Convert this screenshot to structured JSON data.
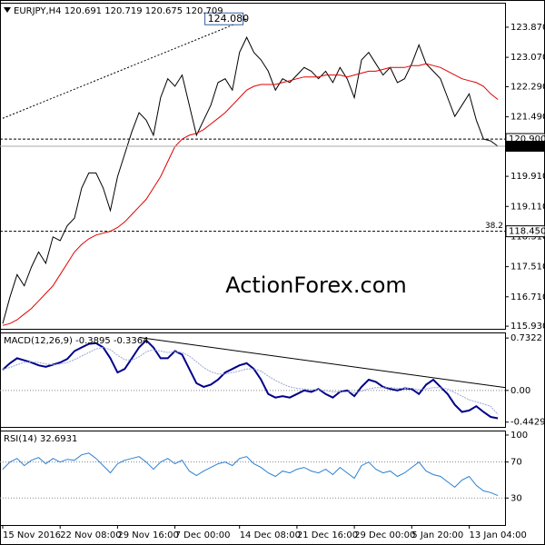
{
  "chart_data": [
    {
      "type": "line",
      "title": "EURJPY,H4 120.691 120.719 120.675 120.709",
      "watermark": "ActionForex.com",
      "xlim": [
        -0.38,
        70
      ],
      "ylim": [
        115.86,
        124.52
      ],
      "yticks": [
        {
          "value": 123.87,
          "label": "123.870"
        },
        {
          "value": 123.07,
          "label": "123.070"
        },
        {
          "value": 122.29,
          "label": "122.290"
        },
        {
          "value": 121.49,
          "label": "121.490"
        },
        {
          "value": 119.91,
          "label": "119.910"
        },
        {
          "value": 119.11,
          "label": "119.110"
        },
        {
          "value": 118.31,
          "label": "118.310"
        },
        {
          "value": 117.51,
          "label": "117.510"
        },
        {
          "value": 116.71,
          "label": "116.710"
        },
        {
          "value": 115.93,
          "label": "115.930"
        }
      ],
      "series": [
        {
          "name": "EURJPY",
          "color": "#000000",
          "values": [
            116.0,
            116.7,
            117.3,
            117.0,
            117.5,
            117.9,
            117.6,
            118.3,
            118.2,
            118.6,
            118.8,
            119.6,
            120.0,
            120.0,
            119.6,
            119.0,
            119.9,
            120.5,
            121.1,
            121.6,
            121.4,
            121.0,
            122.0,
            122.5,
            122.3,
            122.6,
            121.8,
            121.0,
            121.4,
            121.8,
            122.4,
            122.5,
            122.2,
            123.2,
            123.6,
            123.2,
            123.0,
            122.7,
            122.2,
            122.5,
            122.4,
            122.6,
            122.8,
            122.7,
            122.5,
            122.7,
            122.4,
            122.8,
            122.5,
            122.0,
            123.0,
            123.2,
            122.9,
            122.6,
            122.8,
            122.4,
            122.5,
            122.9,
            123.4,
            122.9,
            122.7,
            122.5,
            122.0,
            121.5,
            121.8,
            122.1,
            121.4,
            120.9,
            120.85,
            120.709
          ]
        },
        {
          "name": "MA",
          "color": "#e00000",
          "values": [
            115.95,
            116.0,
            116.1,
            116.25,
            116.4,
            116.6,
            116.8,
            117.0,
            117.3,
            117.6,
            117.9,
            118.1,
            118.25,
            118.35,
            118.4,
            118.45,
            118.55,
            118.7,
            118.9,
            119.1,
            119.3,
            119.6,
            119.9,
            120.3,
            120.7,
            120.9,
            121.0,
            121.05,
            121.15,
            121.3,
            121.45,
            121.6,
            121.8,
            122.0,
            122.2,
            122.3,
            122.35,
            122.35,
            122.35,
            122.4,
            122.45,
            122.5,
            122.55,
            122.55,
            122.55,
            122.6,
            122.6,
            122.6,
            122.55,
            122.6,
            122.65,
            122.7,
            122.7,
            122.75,
            122.8,
            122.8,
            122.8,
            122.85,
            122.85,
            122.9,
            122.85,
            122.8,
            122.7,
            122.6,
            122.5,
            122.45,
            122.4,
            122.3,
            122.1,
            121.95
          ]
        }
      ],
      "levels": [
        {
          "value": 120.9,
          "label": "120.900"
        },
        {
          "value": 118.45,
          "label": "118.450",
          "note": "38.2"
        }
      ],
      "high_label": {
        "x": 34,
        "value": 124.08,
        "label": "124.080"
      },
      "trendline": {
        "x": [
          0,
          34
        ],
        "values": [
          121.45,
          124.08
        ]
      }
    },
    {
      "type": "line",
      "title": "MACD(12,26,9) -0.3895 -0.3364",
      "xlim": [
        -0.38,
        70
      ],
      "ylim": [
        -0.51,
        0.81
      ],
      "yticks": [
        0.7322,
        {
          "value": 0,
          "label": "0.00"
        },
        -0.4429
      ],
      "levels": [
        0
      ],
      "series": [
        {
          "name": "MACD",
          "color": "#00008b",
          "values": [
            0.29,
            0.38,
            0.45,
            0.42,
            0.39,
            0.35,
            0.33,
            0.36,
            0.39,
            0.44,
            0.55,
            0.6,
            0.65,
            0.66,
            0.6,
            0.45,
            0.25,
            0.3,
            0.45,
            0.6,
            0.7,
            0.6,
            0.45,
            0.45,
            0.55,
            0.5,
            0.3,
            0.1,
            0.05,
            0.08,
            0.15,
            0.25,
            0.3,
            0.35,
            0.38,
            0.3,
            0.15,
            -0.05,
            -0.1,
            -0.08,
            -0.1,
            -0.05,
            0.0,
            -0.02,
            0.02,
            -0.05,
            -0.1,
            -0.02,
            0.0,
            -0.08,
            0.05,
            0.15,
            0.12,
            0.05,
            0.02,
            0.0,
            0.03,
            0.02,
            -0.05,
            0.08,
            0.15,
            0.05,
            -0.05,
            -0.2,
            -0.3,
            -0.28,
            -0.22,
            -0.3,
            -0.37,
            -0.3895
          ]
        },
        {
          "name": "Signal",
          "color": "#9aa6d6",
          "values": [
            0.3,
            0.32,
            0.36,
            0.39,
            0.4,
            0.39,
            0.37,
            0.36,
            0.37,
            0.39,
            0.43,
            0.48,
            0.53,
            0.58,
            0.6,
            0.57,
            0.49,
            0.43,
            0.42,
            0.47,
            0.54,
            0.57,
            0.55,
            0.53,
            0.54,
            0.53,
            0.48,
            0.4,
            0.32,
            0.26,
            0.23,
            0.23,
            0.25,
            0.27,
            0.3,
            0.3,
            0.27,
            0.2,
            0.14,
            0.09,
            0.05,
            0.03,
            0.02,
            0.01,
            0.01,
            0.0,
            -0.02,
            -0.02,
            -0.02,
            -0.03,
            -0.01,
            0.02,
            0.04,
            0.04,
            0.04,
            0.03,
            0.03,
            0.03,
            0.01,
            0.02,
            0.04,
            0.04,
            0.02,
            -0.03,
            -0.08,
            -0.13,
            -0.16,
            -0.19,
            -0.22,
            -0.3364
          ]
        }
      ],
      "trendline": {
        "x": [
          19,
          70
        ],
        "values": [
          0.74,
          0.04
        ]
      }
    },
    {
      "type": "line",
      "title": "RSI(14) 32.6931",
      "xlim": [
        -0.38,
        70
      ],
      "ylim": [
        0,
        105
      ],
      "yticks": [
        100,
        70,
        30
      ],
      "levels": [
        70,
        30
      ],
      "xticks": [
        {
          "value": 0,
          "label": "15 Nov 2016"
        },
        {
          "value": 8,
          "label": "22 Nov 08:00"
        },
        {
          "value": 16,
          "label": "29 Nov 16:00"
        },
        {
          "value": 24,
          "label": "7 Dec 00:00"
        },
        {
          "value": 33,
          "label": "14 Dec 08:00"
        },
        {
          "value": 41,
          "label": "21 Dec 16:00"
        },
        {
          "value": 49,
          "label": "29 Dec 00:00"
        },
        {
          "value": 57,
          "label": "5 Jan 20:00"
        },
        {
          "value": 65,
          "label": "13 Jan 04:00"
        }
      ],
      "series": [
        {
          "name": "RSI",
          "color": "#2a7fd4",
          "values": [
            62,
            70,
            74,
            66,
            72,
            75,
            68,
            74,
            70,
            73,
            72,
            78,
            80,
            74,
            66,
            58,
            68,
            72,
            74,
            76,
            70,
            62,
            70,
            74,
            68,
            72,
            60,
            55,
            60,
            64,
            68,
            70,
            66,
            74,
            76,
            68,
            64,
            58,
            54,
            60,
            58,
            62,
            64,
            60,
            58,
            62,
            56,
            64,
            58,
            52,
            66,
            70,
            62,
            58,
            60,
            54,
            58,
            64,
            70,
            60,
            56,
            54,
            48,
            42,
            50,
            54,
            44,
            38,
            36,
            32.6931
          ]
        }
      ]
    }
  ]
}
